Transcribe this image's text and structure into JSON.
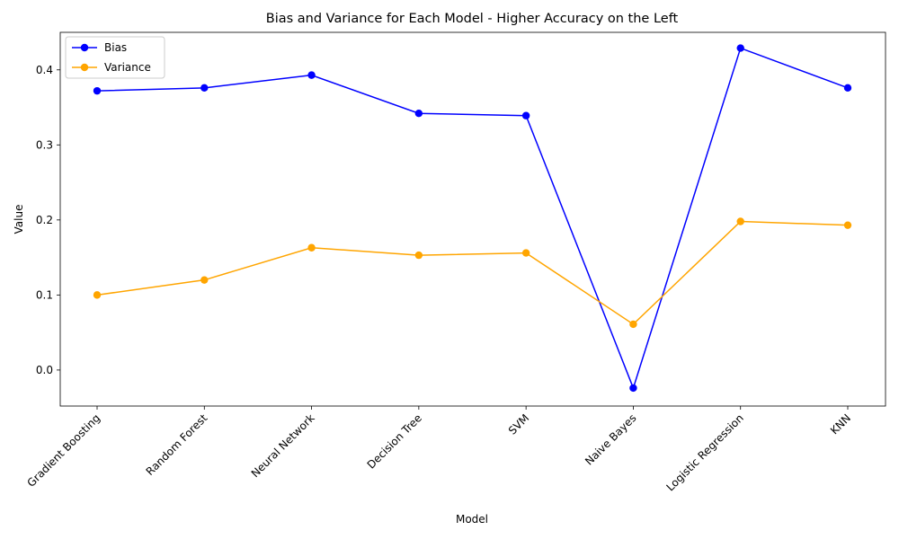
{
  "chart_data": {
    "type": "line",
    "title": "Bias and Variance for Each Model - Higher Accuracy on the Left",
    "xlabel": "Model",
    "ylabel": "Value",
    "categories": [
      "Gradient Boosting",
      "Random Forest",
      "Neural Network",
      "Decision Tree",
      "SVM",
      "Naive Bayes",
      "Logistic Regression",
      "KNN"
    ],
    "series": [
      {
        "name": "Bias",
        "color": "#0000ff",
        "marker": "circle",
        "values": [
          0.372,
          0.376,
          0.393,
          0.342,
          0.339,
          -0.024,
          0.429,
          0.376
        ]
      },
      {
        "name": "Variance",
        "color": "#ffa500",
        "marker": "circle",
        "values": [
          0.1,
          0.12,
          0.163,
          0.153,
          0.156,
          0.061,
          0.198,
          0.193
        ]
      }
    ],
    "ylim": [
      -0.048,
      0.45
    ],
    "yticks": [
      0.0,
      0.1,
      0.2,
      0.3,
      0.4
    ],
    "ytick_labels": [
      "0.0",
      "0.1",
      "0.2",
      "0.3",
      "0.4"
    ],
    "grid": false,
    "legend_position": "upper-left",
    "xtick_rotation": 45
  }
}
